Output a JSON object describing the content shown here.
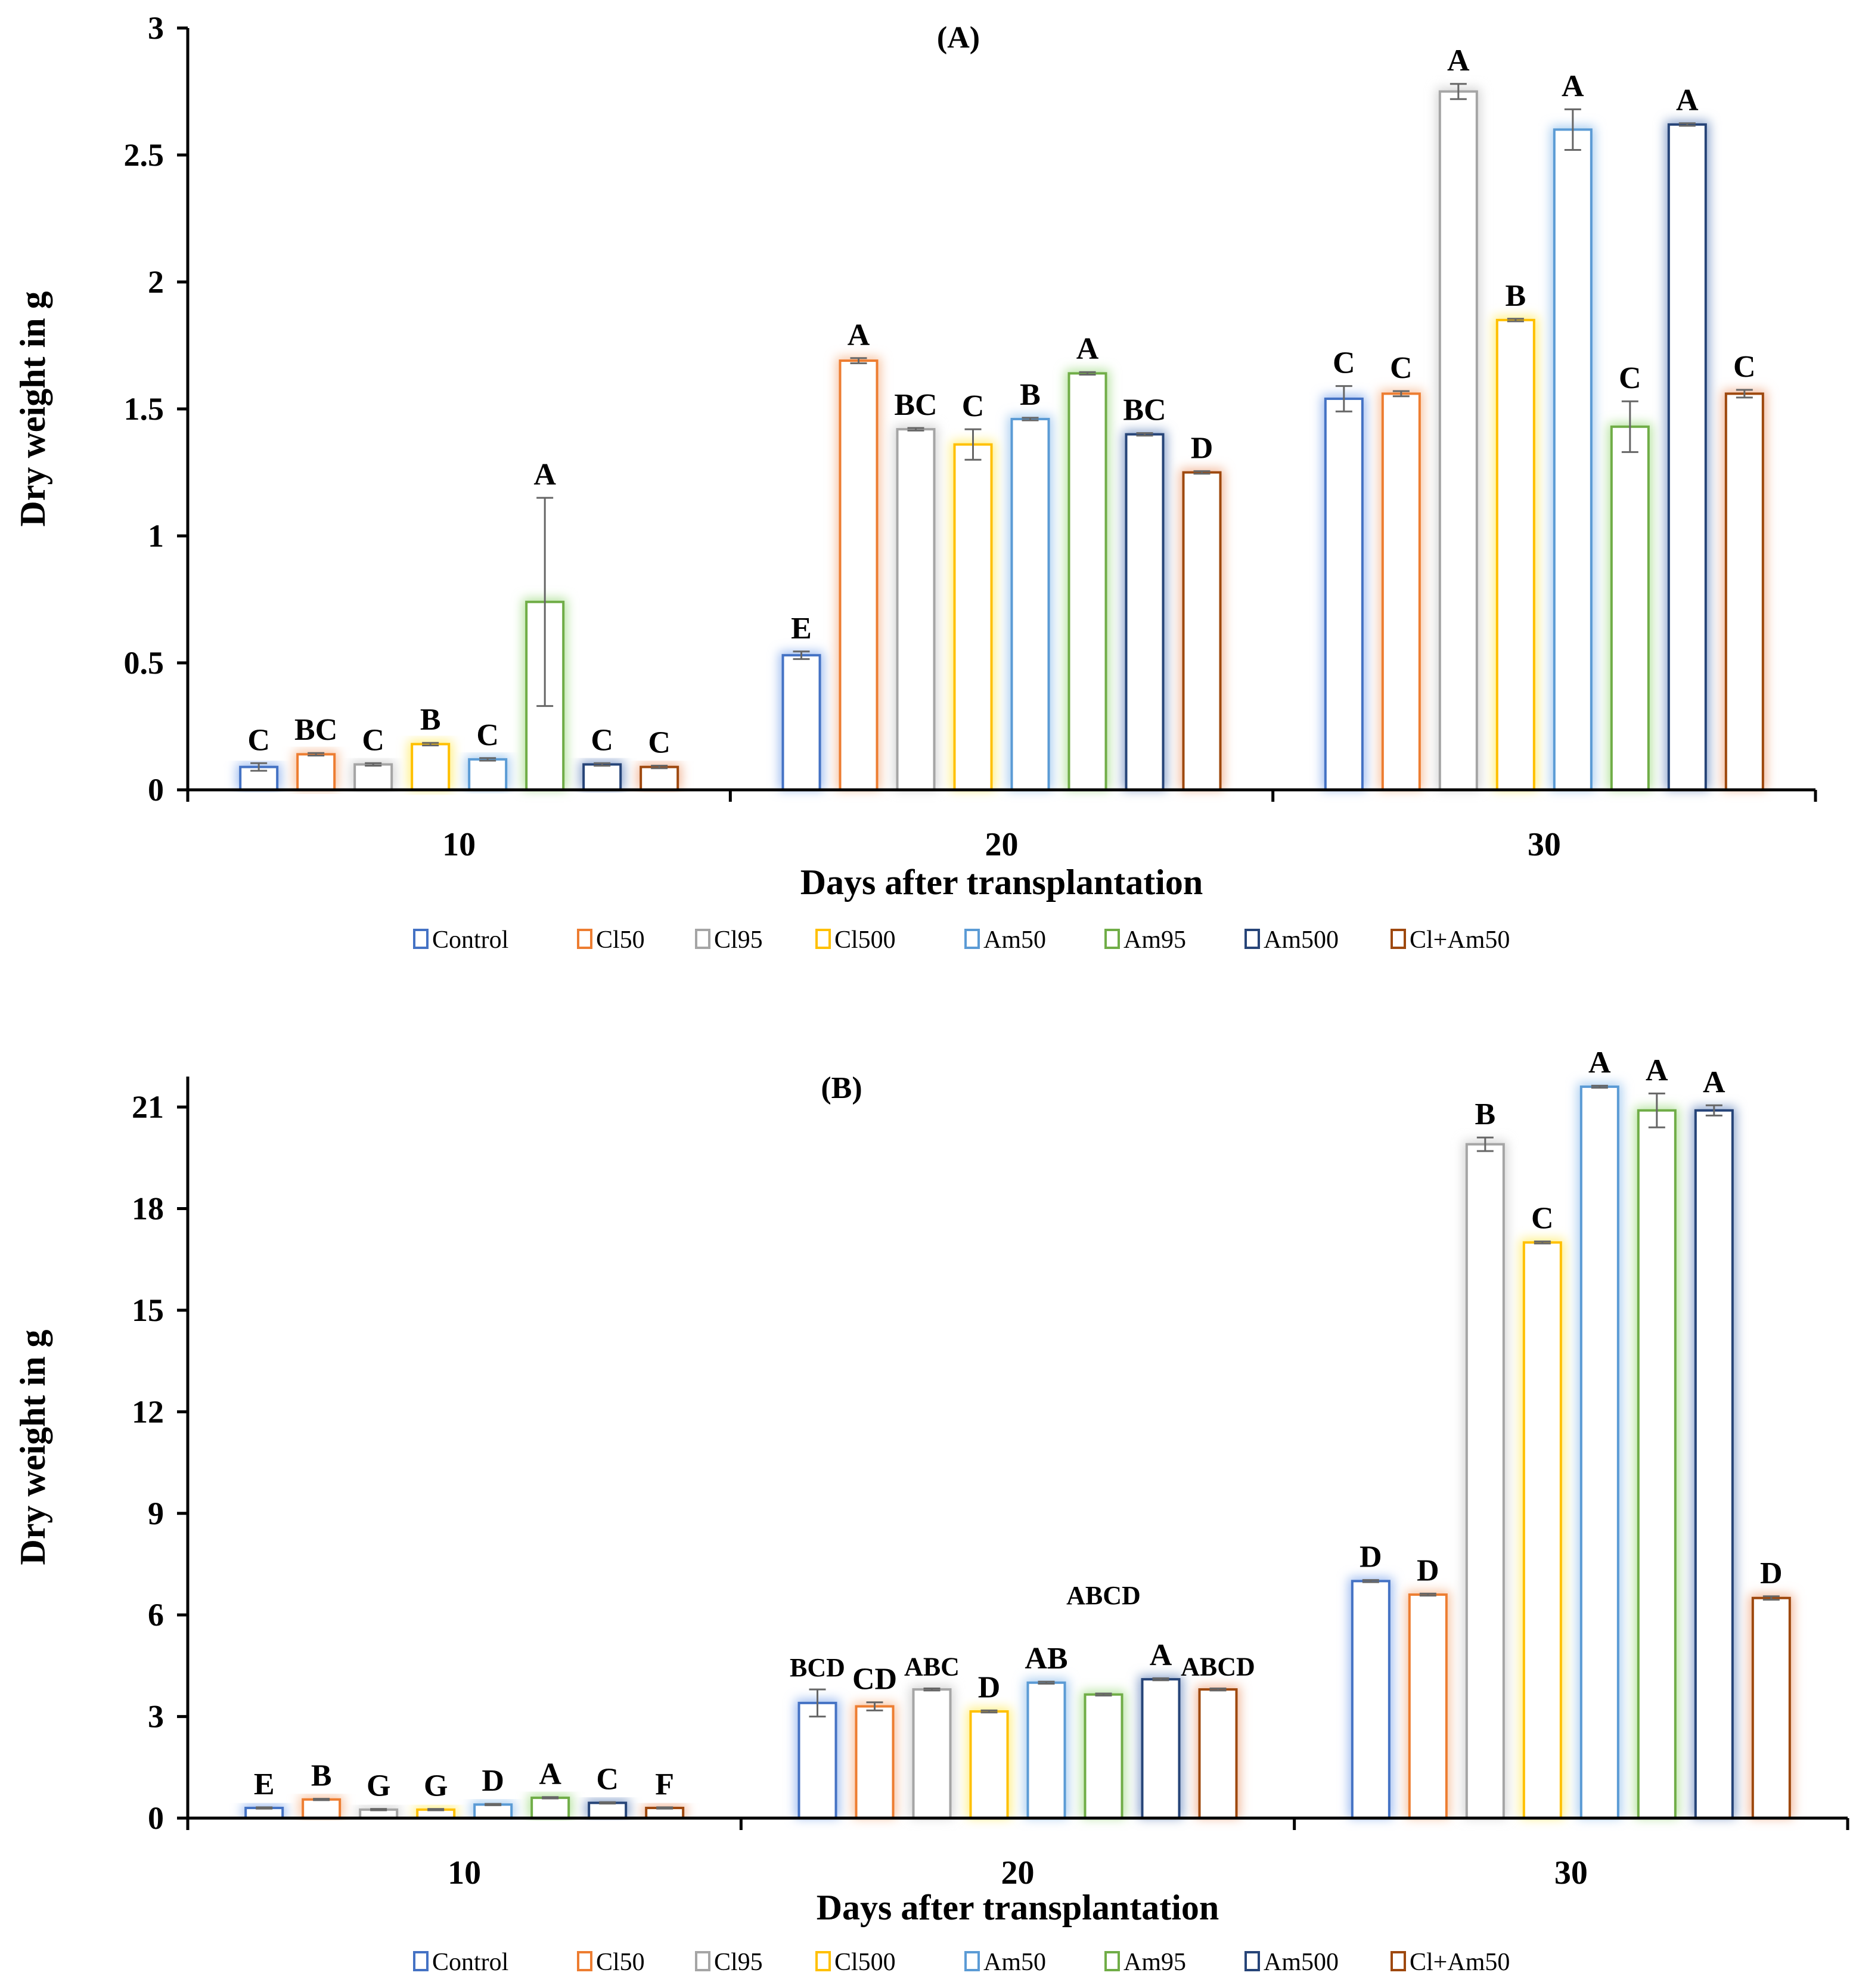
{
  "legend": [
    "Control",
    "Cl50",
    "Cl95",
    "Cl500",
    "Am50",
    "Am95",
    "Am500",
    "Cl+Am50"
  ],
  "colors": [
    "#4472c4",
    "#ed7d31",
    "#a5a5a5",
    "#ffc000",
    "#5b9bd5",
    "#70ad47",
    "#264478",
    "#9e480e"
  ],
  "glow": [
    "#9dbbf0",
    "#f7c2a0",
    "#d6d6d6",
    "#ffef80",
    "#a9cdf0",
    "#b6e3a0",
    "#8aa3cc",
    "#f2b89a"
  ],
  "chart_data": [
    {
      "type": "bar",
      "title": "(A)",
      "xlabel": "Days after transplantation",
      "ylabel": "Dry weight in g",
      "ylim": [
        0,
        3
      ],
      "yticks": [
        "0",
        "0.5",
        "1",
        "1.5",
        "2",
        "2.5",
        "3"
      ],
      "ytick_values": [
        0,
        0.5,
        1,
        1.5,
        2,
        2.5,
        3
      ],
      "categories": [
        "10",
        "20",
        "30"
      ],
      "series": [
        {
          "name": "Control",
          "values": [
            0.09,
            0.53,
            1.54
          ],
          "errors": [
            0.015,
            0.015,
            0.05
          ],
          "letters": [
            "C",
            "E",
            "C"
          ]
        },
        {
          "name": "Cl50",
          "values": [
            0.14,
            1.69,
            1.56
          ],
          "errors": [
            0.005,
            0.01,
            0.01
          ],
          "letters": [
            "BC",
            "A",
            "C"
          ]
        },
        {
          "name": "Cl95",
          "values": [
            0.1,
            1.42,
            2.75
          ],
          "errors": [
            0.005,
            0.005,
            0.03
          ],
          "letters": [
            "C",
            "BC",
            "A"
          ]
        },
        {
          "name": "Cl500",
          "values": [
            0.18,
            1.36,
            1.85
          ],
          "errors": [
            0.005,
            0.06,
            0.005
          ],
          "letters": [
            "B",
            "C",
            "B"
          ]
        },
        {
          "name": "Am50",
          "values": [
            0.12,
            1.46,
            2.6
          ],
          "errors": [
            0.005,
            0.005,
            0.08
          ],
          "letters": [
            "C",
            "B",
            "A"
          ]
        },
        {
          "name": "Am95",
          "values": [
            0.74,
            1.64,
            1.43
          ],
          "errors": [
            0.41,
            0.005,
            0.1
          ],
          "letters": [
            "A",
            "A",
            "C"
          ]
        },
        {
          "name": "Am500",
          "values": [
            0.1,
            1.4,
            2.62
          ],
          "errors": [
            0.005,
            0.005,
            0.005
          ],
          "letters": [
            "C",
            "BC",
            "A"
          ]
        },
        {
          "name": "Cl+Am50",
          "values": [
            0.09,
            1.25,
            1.56
          ],
          "errors": [
            0.005,
            0.005,
            0.015
          ],
          "letters": [
            "C",
            "D",
            "C"
          ]
        }
      ]
    },
    {
      "type": "bar",
      "title": "(B)",
      "xlabel": "Days after transplantation",
      "ylabel": "Dry weight in g",
      "ylim": [
        0,
        21.9
      ],
      "yticks": [
        "0",
        "3",
        "6",
        "9",
        "12",
        "15",
        "18",
        "21"
      ],
      "ytick_values": [
        0,
        3,
        6,
        9,
        12,
        15,
        18,
        21
      ],
      "categories": [
        "10",
        "20",
        "30"
      ],
      "series": [
        {
          "name": "Control",
          "values": [
            0.3,
            3.4,
            7.0
          ],
          "errors": [
            0.02,
            0.4,
            0.03
          ],
          "letters": [
            "E",
            "BCD",
            "D"
          ]
        },
        {
          "name": "Cl50",
          "values": [
            0.55,
            3.3,
            6.6
          ],
          "errors": [
            0.02,
            0.12,
            0.03
          ],
          "letters": [
            "B",
            "CD",
            "D"
          ]
        },
        {
          "name": "Cl95",
          "values": [
            0.25,
            3.8,
            19.9
          ],
          "errors": [
            0.02,
            0.03,
            0.2
          ],
          "letters": [
            "G",
            "ABC",
            "B"
          ]
        },
        {
          "name": "Cl500",
          "values": [
            0.25,
            3.15,
            17.0
          ],
          "errors": [
            0.02,
            0.03,
            0.03
          ],
          "letters": [
            "G",
            "D",
            "C"
          ]
        },
        {
          "name": "Am50",
          "values": [
            0.4,
            4.0,
            21.6
          ],
          "errors": [
            0.02,
            0.03,
            0.03
          ],
          "letters": [
            "D",
            "AB",
            "A"
          ]
        },
        {
          "name": "Am95",
          "values": [
            0.6,
            3.65,
            20.9
          ],
          "errors": [
            0.02,
            0.03,
            0.5
          ],
          "letters": [
            "A",
            "ABCD",
            "A"
          ]
        },
        {
          "name": "Am500",
          "values": [
            0.45,
            4.1,
            20.9
          ],
          "errors": [
            0.02,
            0.03,
            0.15
          ],
          "letters": [
            "C",
            "A",
            "A"
          ]
        },
        {
          "name": "Cl+Am50",
          "values": [
            0.3,
            3.8,
            6.5
          ],
          "errors": [
            0.02,
            0.03,
            0.05
          ],
          "letters": [
            "F",
            "ABCD",
            "D"
          ]
        }
      ]
    }
  ]
}
